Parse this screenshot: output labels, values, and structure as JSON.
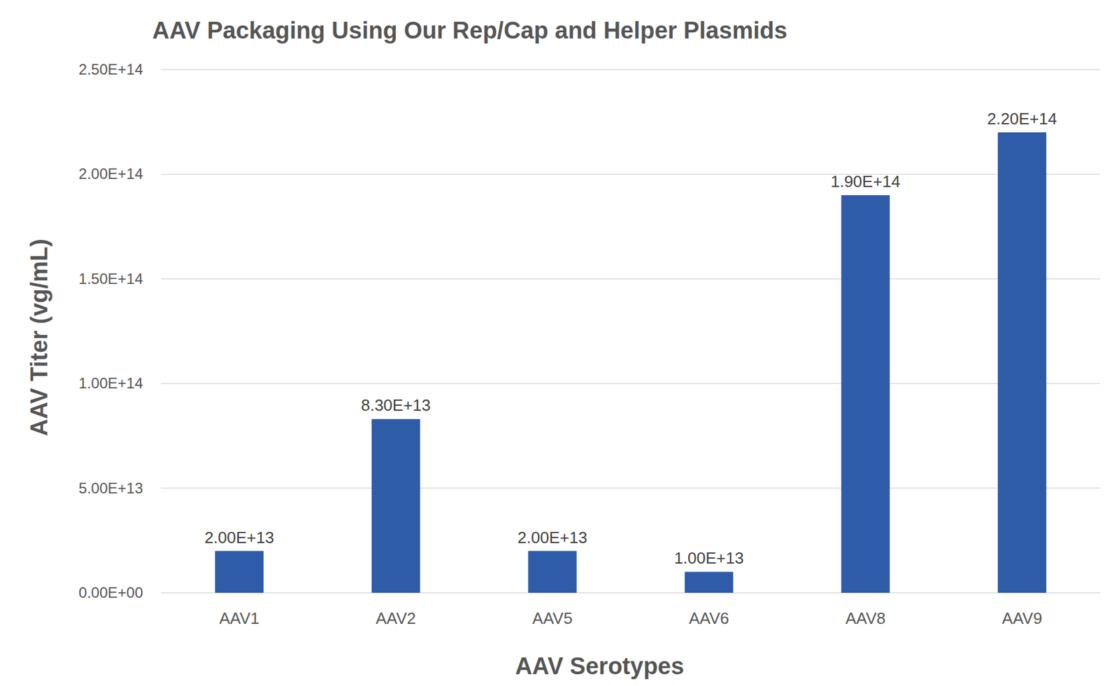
{
  "chart_data": {
    "type": "bar",
    "title": "AAV Packaging Using Our Rep/Cap and Helper Plasmids",
    "x_label": "AAV Serotypes",
    "y_label": "AAV Titer (vg/mL)",
    "categories": [
      "AAV1",
      "AAV2",
      "AAV5",
      "AAV6",
      "AAV8",
      "AAV9"
    ],
    "values": [
      20000000000000.0,
      83000000000000.0,
      20000000000000.0,
      10000000000000.0,
      190000000000000.0,
      220000000000000.0
    ],
    "value_labels": [
      "2.00E+13",
      "8.30E+13",
      "2.00E+13",
      "1.00E+13",
      "1.90E+14",
      "2.20E+14"
    ],
    "color": "#2e5ca8",
    "ylim": [
      0,
      250000000000000.0
    ],
    "yticks": [
      {
        "value": 0,
        "label": "0.00E+00"
      },
      {
        "value": 50000000000000.0,
        "label": "5.00E+13"
      },
      {
        "value": 100000000000000.0,
        "label": "1.00E+14"
      },
      {
        "value": 150000000000000.0,
        "label": "1.50E+14"
      },
      {
        "value": 200000000000000.0,
        "label": "2.00E+14"
      },
      {
        "value": 250000000000000.0,
        "label": "2.50E+14"
      }
    ],
    "grid": true,
    "data_labels": true
  }
}
